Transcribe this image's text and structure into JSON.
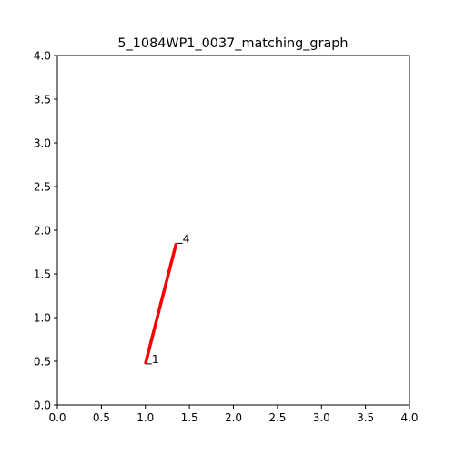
{
  "chart_data": {
    "type": "line",
    "title": "5_1084WP1_0037_matching_graph",
    "xlabel": "",
    "ylabel": "",
    "xlim": [
      0,
      4
    ],
    "ylim": [
      0,
      4
    ],
    "grid": false,
    "x_ticks": [
      "0.0",
      "0.5",
      "1.0",
      "1.5",
      "2.0",
      "2.5",
      "3.0",
      "3.5",
      "4.0"
    ],
    "y_ticks": [
      "0.0",
      "0.5",
      "1.0",
      "1.5",
      "2.0",
      "2.5",
      "3.0",
      "3.5",
      "4.0"
    ],
    "nodes": [
      {
        "label": "1",
        "x": 1.0,
        "y": 0.47
      },
      {
        "label": "4",
        "x": 1.35,
        "y": 1.85
      }
    ],
    "edges": [
      {
        "from": "1",
        "to": "4",
        "color": "#ff0000"
      }
    ]
  }
}
